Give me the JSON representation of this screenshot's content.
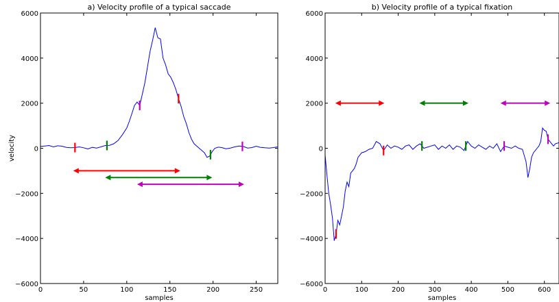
{
  "chart_data": [
    {
      "type": "line",
      "title": "a) Velocity profile of a typical saccade",
      "xlabel": "samples",
      "ylabel": "velocity",
      "xlim": [
        0,
        275
      ],
      "ylim": [
        -6000,
        6000
      ],
      "xticks": [
        0,
        50,
        100,
        150,
        200,
        250
      ],
      "yticks": [
        -6000,
        -4000,
        -2000,
        0,
        2000,
        4000,
        6000
      ],
      "series": [
        {
          "color": "#0000ff",
          "x": [
            0,
            5,
            10,
            15,
            20,
            25,
            30,
            35,
            40,
            45,
            50,
            55,
            60,
            65,
            70,
            75,
            80,
            85,
            90,
            95,
            100,
            103,
            106,
            109,
            112,
            115,
            118,
            121,
            124,
            127,
            130,
            133,
            136,
            139,
            142,
            145,
            148,
            151,
            154,
            157,
            160,
            163,
            166,
            169,
            172,
            175,
            178,
            181,
            184,
            187,
            190,
            193,
            196,
            199,
            202,
            206,
            210,
            215,
            220,
            225,
            230,
            235,
            240,
            245,
            250,
            255,
            260,
            265,
            270,
            275
          ],
          "y": [
            80,
            100,
            120,
            60,
            110,
            90,
            40,
            20,
            30,
            60,
            20,
            -30,
            40,
            10,
            60,
            120,
            130,
            200,
            350,
            600,
            900,
            1200,
            1550,
            1900,
            2050,
            1900,
            2400,
            2900,
            3600,
            4300,
            4800,
            5350,
            4900,
            4850,
            4000,
            3700,
            3300,
            3150,
            2900,
            2600,
            2200,
            1850,
            1400,
            1100,
            700,
            400,
            200,
            100,
            0,
            -100,
            -200,
            -400,
            -350,
            -150,
            0,
            50,
            30,
            -20,
            10,
            60,
            100,
            80,
            10,
            30,
            90,
            40,
            20,
            10,
            30,
            60
          ]
        }
      ],
      "markers": [
        {
          "x": 40,
          "color": "#ff0000"
        },
        {
          "x": 77,
          "color": "#008000"
        },
        {
          "x": 115,
          "color": "#bf00bf"
        },
        {
          "x": 160,
          "color": "#ff0000"
        },
        {
          "x": 197,
          "color": "#008000"
        },
        {
          "x": 234,
          "color": "#bf00bf"
        }
      ],
      "arrows": [
        {
          "x1": 38,
          "x2": 162,
          "y": -1000,
          "color": "#ff0000"
        },
        {
          "x1": 75,
          "x2": 199,
          "y": -1300,
          "color": "#008000"
        },
        {
          "x1": 112,
          "x2": 236,
          "y": -1600,
          "color": "#bf00bf"
        }
      ]
    },
    {
      "type": "line",
      "title": "b) Velocity profile of a typical fixation",
      "xlabel": "samples",
      "ylabel": "",
      "xlim": [
        0,
        640
      ],
      "ylim": [
        -6000,
        6000
      ],
      "xticks": [
        0,
        100,
        200,
        300,
        400,
        500,
        600
      ],
      "yticks": [
        -6000,
        -4000,
        -2000,
        0,
        2000,
        4000,
        6000
      ],
      "series": [
        {
          "color": "#0000ff",
          "x": [
            0,
            5,
            10,
            15,
            20,
            25,
            30,
            35,
            40,
            45,
            50,
            55,
            60,
            65,
            70,
            75,
            80,
            85,
            90,
            95,
            100,
            110,
            120,
            130,
            140,
            150,
            160,
            170,
            180,
            190,
            200,
            210,
            220,
            230,
            240,
            250,
            260,
            270,
            280,
            290,
            300,
            310,
            320,
            330,
            340,
            350,
            360,
            370,
            380,
            390,
            400,
            410,
            420,
            430,
            440,
            450,
            460,
            470,
            480,
            490,
            500,
            510,
            520,
            530,
            540,
            550,
            555,
            560,
            565,
            570,
            575,
            580,
            585,
            590,
            595,
            600,
            605,
            610,
            615,
            620,
            625,
            630,
            640
          ],
          "y": [
            -300,
            -1200,
            -2000,
            -2500,
            -3100,
            -4100,
            -3800,
            -3200,
            -3400,
            -3000,
            -2600,
            -1900,
            -1500,
            -1700,
            -1100,
            -1000,
            -900,
            -700,
            -400,
            -300,
            -200,
            -150,
            -50,
            0,
            300,
            200,
            -100,
            150,
            0,
            100,
            50,
            -50,
            100,
            150,
            -50,
            100,
            200,
            0,
            50,
            100,
            150,
            -50,
            100,
            0,
            150,
            -50,
            100,
            50,
            -100,
            300,
            100,
            0,
            150,
            50,
            -50,
            100,
            0,
            200,
            -150,
            100,
            50,
            0,
            100,
            0,
            -50,
            -600,
            -1300,
            -900,
            -400,
            -200,
            -100,
            0,
            100,
            300,
            900,
            800,
            750,
            400,
            300,
            200,
            100,
            200,
            250
          ]
        }
      ],
      "markers": [
        {
          "x": 30,
          "color": "#ff0000"
        },
        {
          "x": 160,
          "color": "#ff0000"
        },
        {
          "x": 265,
          "color": "#008000"
        },
        {
          "x": 385,
          "color": "#008000"
        },
        {
          "x": 490,
          "color": "#bf00bf"
        },
        {
          "x": 610,
          "color": "#bf00bf"
        }
      ],
      "arrows": [
        {
          "x1": 28,
          "x2": 162,
          "y": 2000,
          "color": "#ff0000"
        },
        {
          "x1": 258,
          "x2": 392,
          "y": 2000,
          "color": "#008000"
        },
        {
          "x1": 480,
          "x2": 616,
          "y": 2000,
          "color": "#bf00bf"
        }
      ]
    }
  ]
}
